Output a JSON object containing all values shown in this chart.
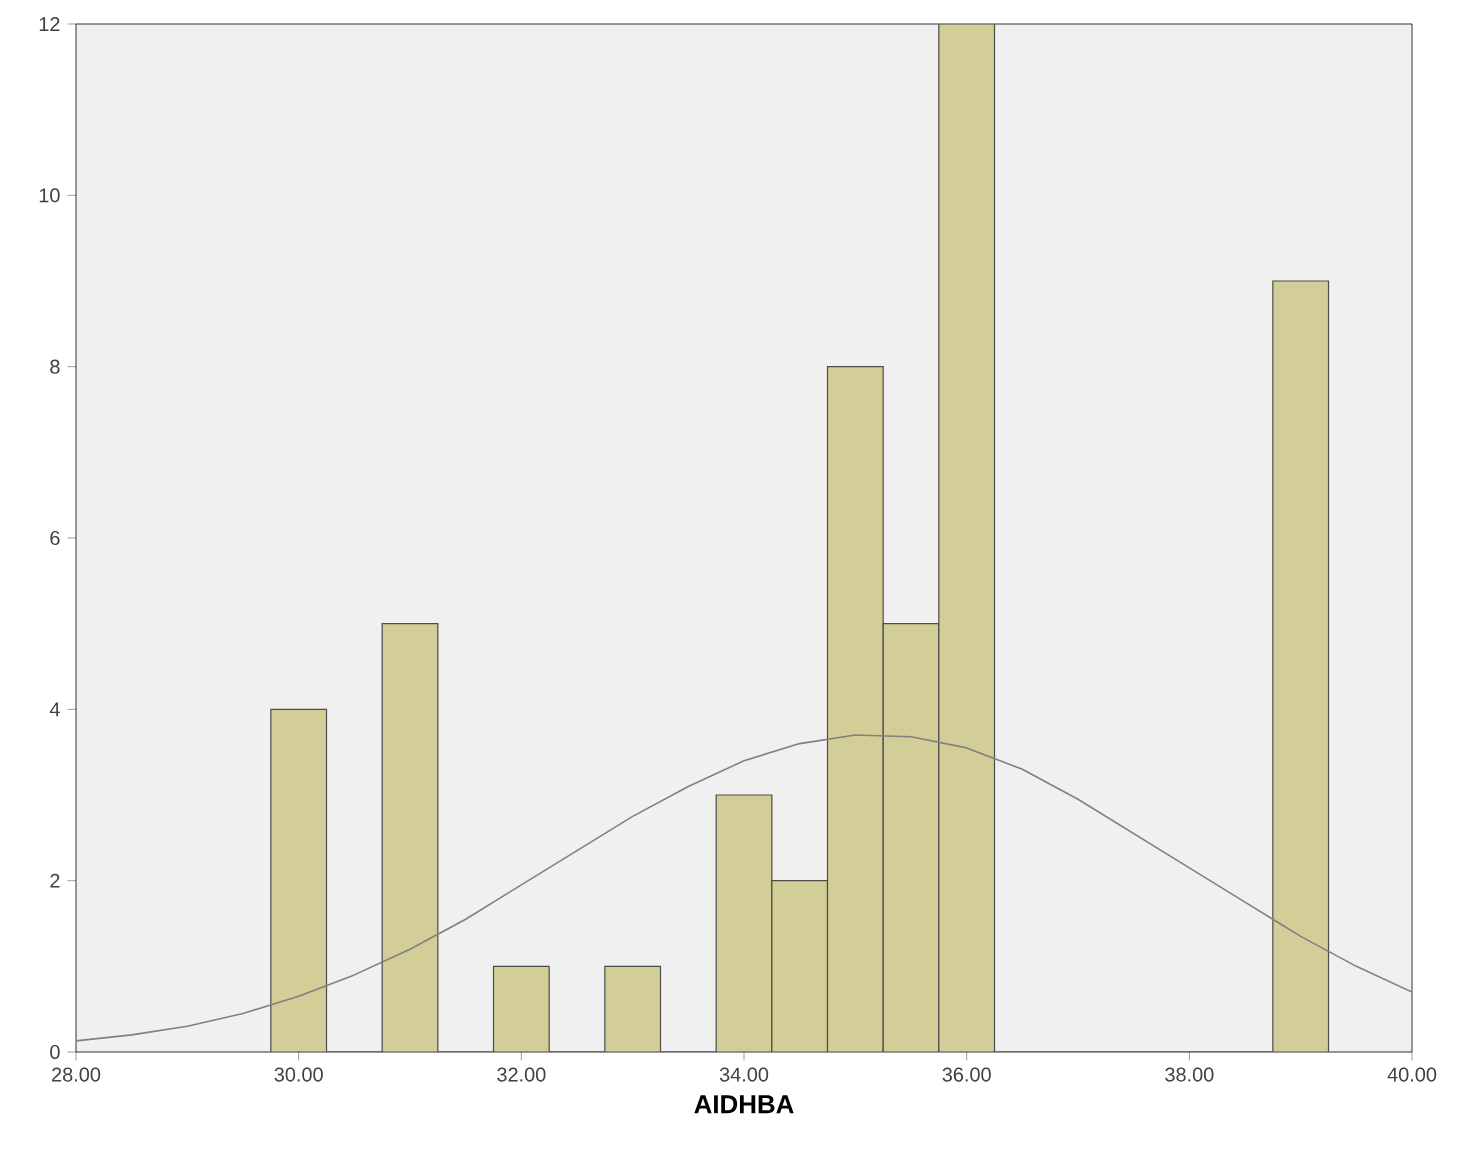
{
  "chart_data": {
    "type": "histogram",
    "xlabel": "AIDHBA",
    "bins": [
      29.75,
      30.25,
      30.75,
      31.25,
      31.75,
      32.25,
      32.75,
      33.25,
      33.75,
      34.25,
      34.75,
      35.25,
      35.75,
      36.25,
      36.75,
      37.25,
      37.75,
      38.25,
      38.75,
      39.25
    ],
    "values": [
      4,
      0,
      5,
      0,
      1,
      0,
      1,
      0,
      3,
      2,
      8,
      5,
      12,
      0,
      0,
      0,
      0,
      0,
      9
    ],
    "color": "#d3ce98",
    "series": [
      {
        "type": "line",
        "color": "#808080",
        "x": [
          28,
          28.5,
          29,
          29.5,
          30,
          30.5,
          31,
          31.5,
          32,
          32.5,
          33,
          33.5,
          34,
          34.5,
          35,
          35.5,
          36,
          36.5,
          37,
          37.5,
          38,
          38.5,
          39,
          39.5,
          40
        ],
        "values": [
          0.13,
          0.2,
          0.3,
          0.45,
          0.65,
          0.9,
          1.2,
          1.55,
          1.95,
          2.35,
          2.75,
          3.1,
          3.4,
          3.6,
          3.7,
          3.68,
          3.55,
          3.3,
          2.95,
          2.55,
          2.15,
          1.75,
          1.35,
          1.0,
          0.7
        ]
      }
    ],
    "xlim": [
      28,
      40
    ],
    "ylim": [
      0,
      12
    ],
    "xticks": [
      {
        "value": 28,
        "label": "28.00"
      },
      {
        "value": 30,
        "label": "30.00"
      },
      {
        "value": 32,
        "label": "32.00"
      },
      {
        "value": 34,
        "label": "34.00"
      },
      {
        "value": 36,
        "label": "36.00"
      },
      {
        "value": 38,
        "label": "38.00"
      },
      {
        "value": 40,
        "label": "40.00"
      }
    ],
    "yticks": [
      0,
      2,
      4,
      6,
      8,
      10,
      12
    ],
    "grid": false
  }
}
